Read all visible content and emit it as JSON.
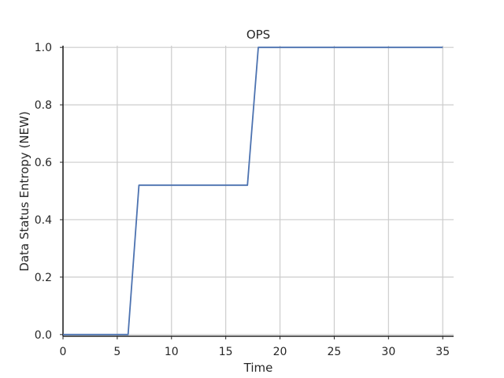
{
  "chart_data": {
    "type": "line",
    "title": "OPS",
    "xlabel": "Time",
    "ylabel": "Data Status Entropy (NEW)",
    "xlim": [
      0,
      36
    ],
    "ylim": [
      -0.006,
      1.006
    ],
    "xticks": [
      0,
      5,
      10,
      15,
      20,
      25,
      30,
      35
    ],
    "xtick_labels": [
      "0",
      "5",
      "10",
      "15",
      "20",
      "25",
      "30",
      "35"
    ],
    "yticks": [
      0.0,
      0.2,
      0.4,
      0.6,
      0.8,
      1.0
    ],
    "ytick_labels": [
      "0.0",
      "0.2",
      "0.4",
      "0.6",
      "0.8",
      "1.0"
    ],
    "grid": true,
    "series": [
      {
        "color": "#4c72b0",
        "x": [
          0,
          1,
          2,
          3,
          4,
          5,
          6,
          7,
          8,
          9,
          10,
          11,
          12,
          13,
          14,
          15,
          16,
          17,
          18,
          19,
          20,
          21,
          22,
          23,
          24,
          25,
          26,
          27,
          28,
          29,
          30,
          31,
          32,
          33,
          34,
          35
        ],
        "y": [
          0,
          0,
          0,
          0,
          0,
          0,
          0,
          0.52,
          0.52,
          0.52,
          0.52,
          0.52,
          0.52,
          0.52,
          0.52,
          0.52,
          0.52,
          0.52,
          1.0,
          1.0,
          1.0,
          1.0,
          1.0,
          1.0,
          1.0,
          1.0,
          1.0,
          1.0,
          1.0,
          1.0,
          1.0,
          1.0,
          1.0,
          1.0,
          1.0,
          1.0
        ]
      }
    ]
  }
}
